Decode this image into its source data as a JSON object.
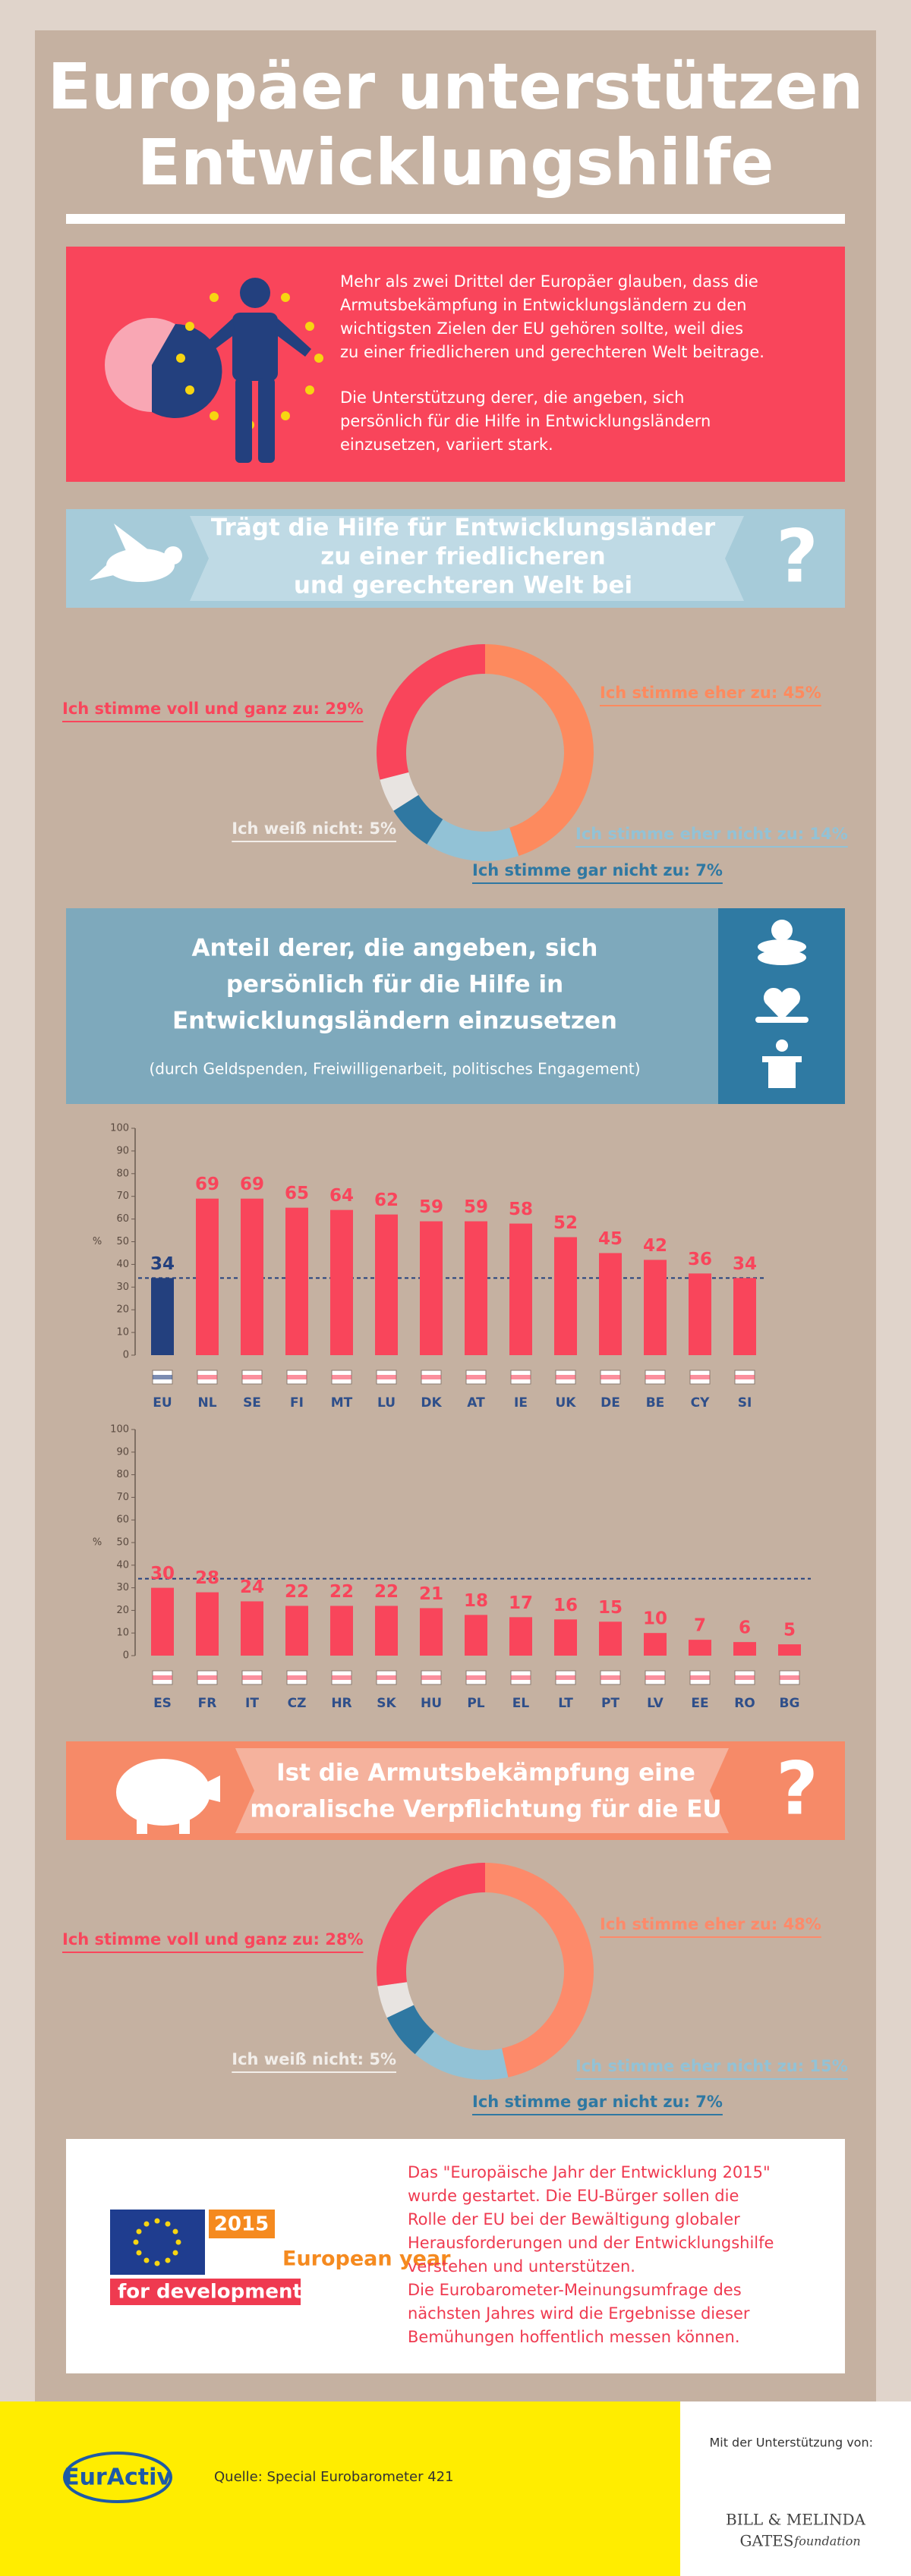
{
  "title": [
    "Europäer unterstützen",
    "Entwicklungshilfe"
  ],
  "intro": [
    [
      "Mehr als zwei Drittel der Europäer glauben, dass die",
      "Armutsbekämpfung in Entwicklungsländern zu den",
      "wichtigsten Zielen der EU gehören sollte, weil dies",
      "zu einer friedlicheren und gerechteren Welt beitrage."
    ],
    [
      "Die Unterstützung derer, die angeben, sich",
      "persönlich für die Hilfe in Entwicklungsländern",
      "einzusetzen, variiert stark."
    ]
  ],
  "question_mark": "?",
  "chart_data": [
    {
      "type": "pie",
      "title": [
        "Trägt die Hilfe für Entwicklungsländer",
        "zu einer friedlicheren",
        "und gerechteren Welt bei"
      ],
      "categories": [
        "Ich stimme eher zu:",
        "Ich stimme eher nicht zu:",
        "Ich stimme gar nicht zu:",
        "Ich weiß nicht:",
        "Ich stimme voll und ganz zu:"
      ],
      "values": [
        45,
        14,
        7,
        5,
        29
      ],
      "value_labels": [
        "45%",
        "14%",
        "7%",
        "5%",
        "29%"
      ],
      "colors": [
        "#fd8a5e",
        "#92c2d6",
        "#2f78a2",
        "#e8e4e1",
        "#f9455b"
      ]
    },
    {
      "type": "bar",
      "title": [
        "Anteil derer, die angeben, sich",
        "persönlich für die Hilfe in",
        "Entwicklungsländern einzusetzen"
      ],
      "subtitle": "(durch Geldspenden, Freiwilligenarbeit, politisches Engagement)",
      "y_label": "%",
      "categories": [
        "EU",
        "NL",
        "SE",
        "FI",
        "MT",
        "LU",
        "DK",
        "AT",
        "IE",
        "UK",
        "DE",
        "BE",
        "CY",
        "SI"
      ],
      "values": [
        34,
        69,
        69,
        65,
        64,
        62,
        59,
        59,
        58,
        52,
        45,
        42,
        36,
        34
      ],
      "colors": [
        "#23407e",
        "#f9455b",
        "#f9455b",
        "#f9455b",
        "#f9455b",
        "#f9455b",
        "#f9455b",
        "#f9455b",
        "#f9455b",
        "#f9455b",
        "#f9455b",
        "#f9455b",
        "#f9455b",
        "#f9455b"
      ],
      "ylim": [
        0,
        100
      ],
      "yticks": [
        0,
        10,
        20,
        30,
        40,
        50,
        60,
        70,
        80,
        90,
        100
      ]
    },
    {
      "type": "bar",
      "y_label": "%",
      "categories": [
        "ES",
        "FR",
        "IT",
        "CZ",
        "HR",
        "SK",
        "HU",
        "PL",
        "EL",
        "LT",
        "PT",
        "LV",
        "EE",
        "RO",
        "BG"
      ],
      "values": [
        30,
        28,
        24,
        22,
        22,
        22,
        21,
        18,
        17,
        16,
        15,
        10,
        7,
        6,
        5
      ],
      "color": "#f9455b",
      "ylim": [
        0,
        100
      ],
      "yticks": [
        0,
        10,
        20,
        30,
        40,
        50,
        60,
        70,
        80,
        90,
        100
      ]
    },
    {
      "type": "pie",
      "title": [
        "Ist die Armutsbekämpfung eine",
        "moralische Verpflichtung für die EU"
      ],
      "categories": [
        "Ich stimme eher zu:",
        "Ich stimme eher nicht zu:",
        "Ich stimme gar nicht zu:",
        "Ich weiß nicht:",
        "Ich stimme voll und ganz zu:"
      ],
      "values": [
        48,
        15,
        7,
        5,
        28
      ],
      "value_labels": [
        "48%",
        "15%",
        "7%",
        "5%",
        "28%"
      ],
      "colors": [
        "#fd8a6a",
        "#92c2d6",
        "#2f78a2",
        "#e8e4e1",
        "#f9455b"
      ]
    }
  ],
  "campaign": {
    "year": "2015",
    "name": "European year",
    "tagline": "for development",
    "text": [
      "Das \"Europäische Jahr der Entwicklung 2015\"",
      "wurde gestartet. Die EU-Bürger sollen die",
      "Rolle der EU bei der Bewältigung globaler",
      "Herausforderungen und der Entwicklungshilfe",
      "verstehen und unterstützen.",
      "Die Eurobarometer-Meinungsumfrage des",
      "nächsten Jahres wird die Ergebnisse dieser",
      "Bemühungen hoffentlich messen können."
    ]
  },
  "footer": {
    "logo": "EurActiv",
    "source": "Quelle: Special Eurobarometer 421",
    "support": "Mit der Unterstützung von:",
    "sponsor": [
      "BILL & MELINDA",
      "GATES",
      "foundation"
    ]
  }
}
